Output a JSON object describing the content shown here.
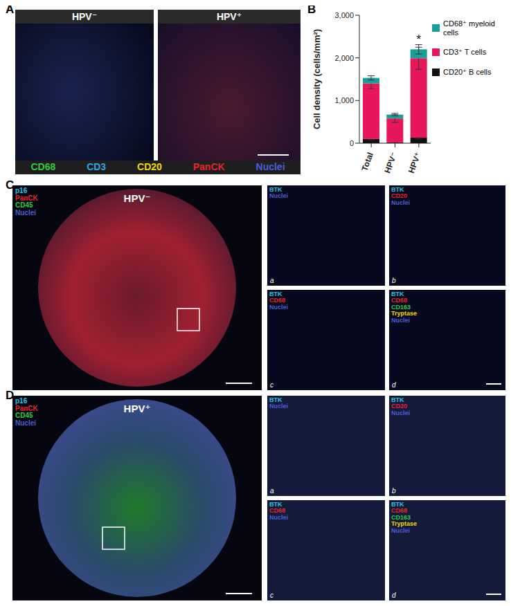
{
  "panel_labels": [
    "A",
    "B",
    "C",
    "D"
  ],
  "panel_a": {
    "titles": [
      "HPV⁻",
      "HPV⁺"
    ],
    "markers": [
      {
        "name": "CD68",
        "color": "#2ecc40"
      },
      {
        "name": "CD3",
        "color": "#29a8e0"
      },
      {
        "name": "CD20",
        "color": "#f5d800"
      },
      {
        "name": "PanCK",
        "color": "#e8242b"
      },
      {
        "name": "Nuclei",
        "color": "#4a5fd4"
      }
    ]
  },
  "chart_data": {
    "type": "bar",
    "stacked": true,
    "categories": [
      "Total",
      "HPV⁻",
      "HPV⁺"
    ],
    "y_label": "Cell density (cells/mm²)",
    "ylim": [
      0,
      3000
    ],
    "yticks": [
      0,
      {
        "value": 1000,
        "label": "1,000"
      },
      {
        "value": 2000,
        "label": "2,000"
      },
      {
        "value": 3000,
        "label": "3,000"
      }
    ],
    "series": [
      {
        "name": "CD20⁺ B cells",
        "color": "#111111",
        "values": [
          100,
          20,
          130
        ],
        "errors": [
          20,
          10,
          30
        ]
      },
      {
        "name": "CD3⁺ T cells",
        "color": "#e8175d",
        "values": [
          1300,
          560,
          1860
        ],
        "errors": [
          120,
          90,
          260
        ]
      },
      {
        "name": "CD68⁺ myeloid cells",
        "color": "#1a9e9a",
        "values": [
          130,
          90,
          210
        ],
        "errors": [
          50,
          30,
          110
        ]
      }
    ],
    "annotations": [
      {
        "text": "*",
        "category": "HPV⁺"
      }
    ],
    "legend": "right"
  },
  "panel_c": {
    "title": "HPV⁻",
    "markers": [
      {
        "name": "p16",
        "color": "#29c4e8"
      },
      {
        "name": "PanCK",
        "color": "#e8242b"
      },
      {
        "name": "CD45",
        "color": "#2ecc40"
      },
      {
        "name": "Nuclei",
        "color": "#4a5fd4"
      }
    ],
    "insets": [
      {
        "letter": "a",
        "markers": [
          {
            "name": "BTK",
            "color": "#29c4e8"
          },
          {
            "name": "Nuclei",
            "color": "#4a5fd4"
          }
        ]
      },
      {
        "letter": "b",
        "markers": [
          {
            "name": "BTK",
            "color": "#29c4e8"
          },
          {
            "name": "CD20",
            "color": "#e8242b"
          },
          {
            "name": "Nuclei",
            "color": "#4a5fd4"
          }
        ]
      },
      {
        "letter": "c",
        "markers": [
          {
            "name": "BTK",
            "color": "#29c4e8"
          },
          {
            "name": "CD68",
            "color": "#e8242b"
          },
          {
            "name": "Nuclei",
            "color": "#4a5fd4"
          }
        ]
      },
      {
        "letter": "d",
        "markers": [
          {
            "name": "BTK",
            "color": "#29c4e8"
          },
          {
            "name": "CD68",
            "color": "#e8242b"
          },
          {
            "name": "CD163",
            "color": "#2ecc40"
          },
          {
            "name": "Tryptase",
            "color": "#f5d800"
          },
          {
            "name": "Nuclei",
            "color": "#4a5fd4"
          }
        ]
      }
    ]
  },
  "panel_d": {
    "title": "HPV⁺",
    "markers": [
      {
        "name": "p16",
        "color": "#29c4e8"
      },
      {
        "name": "PanCK",
        "color": "#e8242b"
      },
      {
        "name": "CD45",
        "color": "#2ecc40"
      },
      {
        "name": "Nuclei",
        "color": "#4a5fd4"
      }
    ],
    "insets": [
      {
        "letter": "a",
        "markers": [
          {
            "name": "BTK",
            "color": "#29c4e8"
          },
          {
            "name": "Nuclei",
            "color": "#4a5fd4"
          }
        ]
      },
      {
        "letter": "b",
        "markers": [
          {
            "name": "BTK",
            "color": "#29c4e8"
          },
          {
            "name": "CD20",
            "color": "#e8242b"
          },
          {
            "name": "Nuclei",
            "color": "#4a5fd4"
          }
        ]
      },
      {
        "letter": "c",
        "markers": [
          {
            "name": "BTK",
            "color": "#29c4e8"
          },
          {
            "name": "CD68",
            "color": "#e8242b"
          },
          {
            "name": "Nuclei",
            "color": "#4a5fd4"
          }
        ]
      },
      {
        "letter": "d",
        "markers": [
          {
            "name": "BTK",
            "color": "#29c4e8"
          },
          {
            "name": "CD68",
            "color": "#e8242b"
          },
          {
            "name": "CD163",
            "color": "#2ecc40"
          },
          {
            "name": "Tryptase",
            "color": "#f5d800"
          },
          {
            "name": "Nuclei",
            "color": "#4a5fd4"
          }
        ]
      }
    ]
  }
}
